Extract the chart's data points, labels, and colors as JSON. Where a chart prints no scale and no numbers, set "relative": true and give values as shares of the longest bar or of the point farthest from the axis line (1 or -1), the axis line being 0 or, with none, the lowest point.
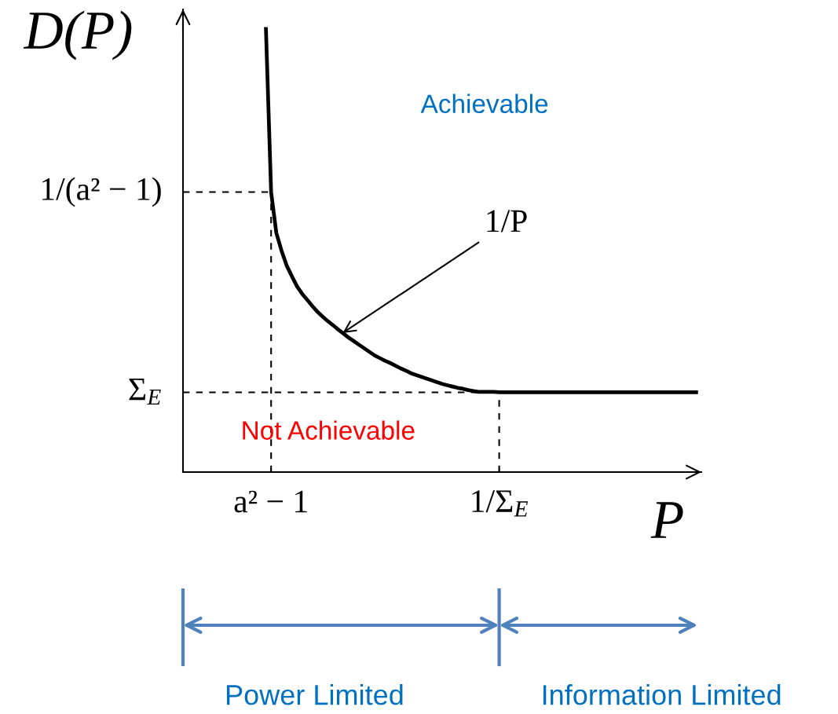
{
  "chart_data": {
    "type": "line",
    "relative": true,
    "xlabel": "P",
    "ylabel": "D(P)",
    "marker": "none",
    "line_style": "solid",
    "categories": [
      null,
      null,
      null,
      null,
      null,
      null,
      null,
      null,
      null,
      null,
      null,
      null,
      null,
      null,
      null,
      null,
      null,
      "a² − 1",
      null,
      null,
      null,
      null,
      null,
      null,
      null,
      null,
      null,
      null,
      null,
      null,
      null,
      null,
      null,
      null,
      null,
      null,
      null,
      null,
      null,
      null,
      null,
      null,
      null,
      null,
      null,
      null,
      null,
      null,
      null,
      null,
      null,
      null,
      null,
      null,
      null,
      null,
      null,
      null,
      null,
      null,
      null,
      "1/Σ$_{E}$",
      null,
      null,
      null,
      null,
      null,
      null,
      null,
      null,
      null,
      null,
      null,
      null,
      null,
      null,
      null,
      null,
      null,
      null,
      null,
      null,
      null,
      null,
      null,
      null,
      null,
      null,
      null,
      null,
      null,
      null,
      null,
      null,
      null,
      null,
      null,
      null,
      null,
      null
    ],
    "series": [
      {
        "color": "#000000",
        "values": [
          null,
          null,
          null,
          null,
          null,
          null,
          null,
          null,
          null,
          null,
          null,
          null,
          null,
          null,
          null,
          null,
          1.0,
          0.632,
          0.54,
          0.5,
          0.466,
          0.442,
          0.419,
          0.402,
          0.388,
          0.374,
          0.361,
          0.35,
          0.34,
          0.331,
          0.321,
          0.312,
          0.303,
          0.295,
          0.287,
          0.279,
          0.271,
          0.263,
          0.257,
          0.251,
          0.246,
          0.24,
          0.234,
          0.229,
          0.223,
          0.219,
          0.215,
          0.211,
          0.207,
          0.203,
          0.199,
          0.196,
          0.193,
          0.19,
          0.188,
          0.185,
          0.183,
          0.181,
          0.181,
          0.181,
          0.181,
          0.18,
          0.18,
          0.18,
          0.18,
          0.18,
          0.18,
          0.18,
          0.18,
          0.18,
          0.18,
          0.18,
          0.18,
          0.18,
          0.18,
          0.18,
          0.18,
          0.18,
          0.18,
          0.18,
          0.18,
          0.18,
          0.18,
          0.18,
          0.18,
          0.18,
          0.18,
          0.18,
          0.18,
          0.18,
          0.18,
          0.18,
          0.18,
          0.18,
          0.18,
          0.18,
          0.18,
          0.18,
          0.18,
          0.18
        ]
      }
    ],
    "ref_lines": [
      {
        "axis": "y",
        "value": 0.632,
        "label": "1/(a² − 1)",
        "color": "#000000",
        "line_style": "dashed"
      },
      {
        "axis": "y",
        "value": 0.18,
        "label": "Σ$_{E}$",
        "color": "#000000",
        "line_style": "dashed"
      },
      {
        "axis": "x",
        "value": "a² − 1",
        "color": "#000000",
        "line_style": "dashed"
      },
      {
        "axis": "x",
        "value": "1/Σ$_{E}$",
        "color": "#000000",
        "line_style": "dashed"
      }
    ],
    "annotations": [
      "Achievable",
      "1/P",
      "Not Achievable",
      "Power Limited",
      "Information Limited"
    ]
  }
}
